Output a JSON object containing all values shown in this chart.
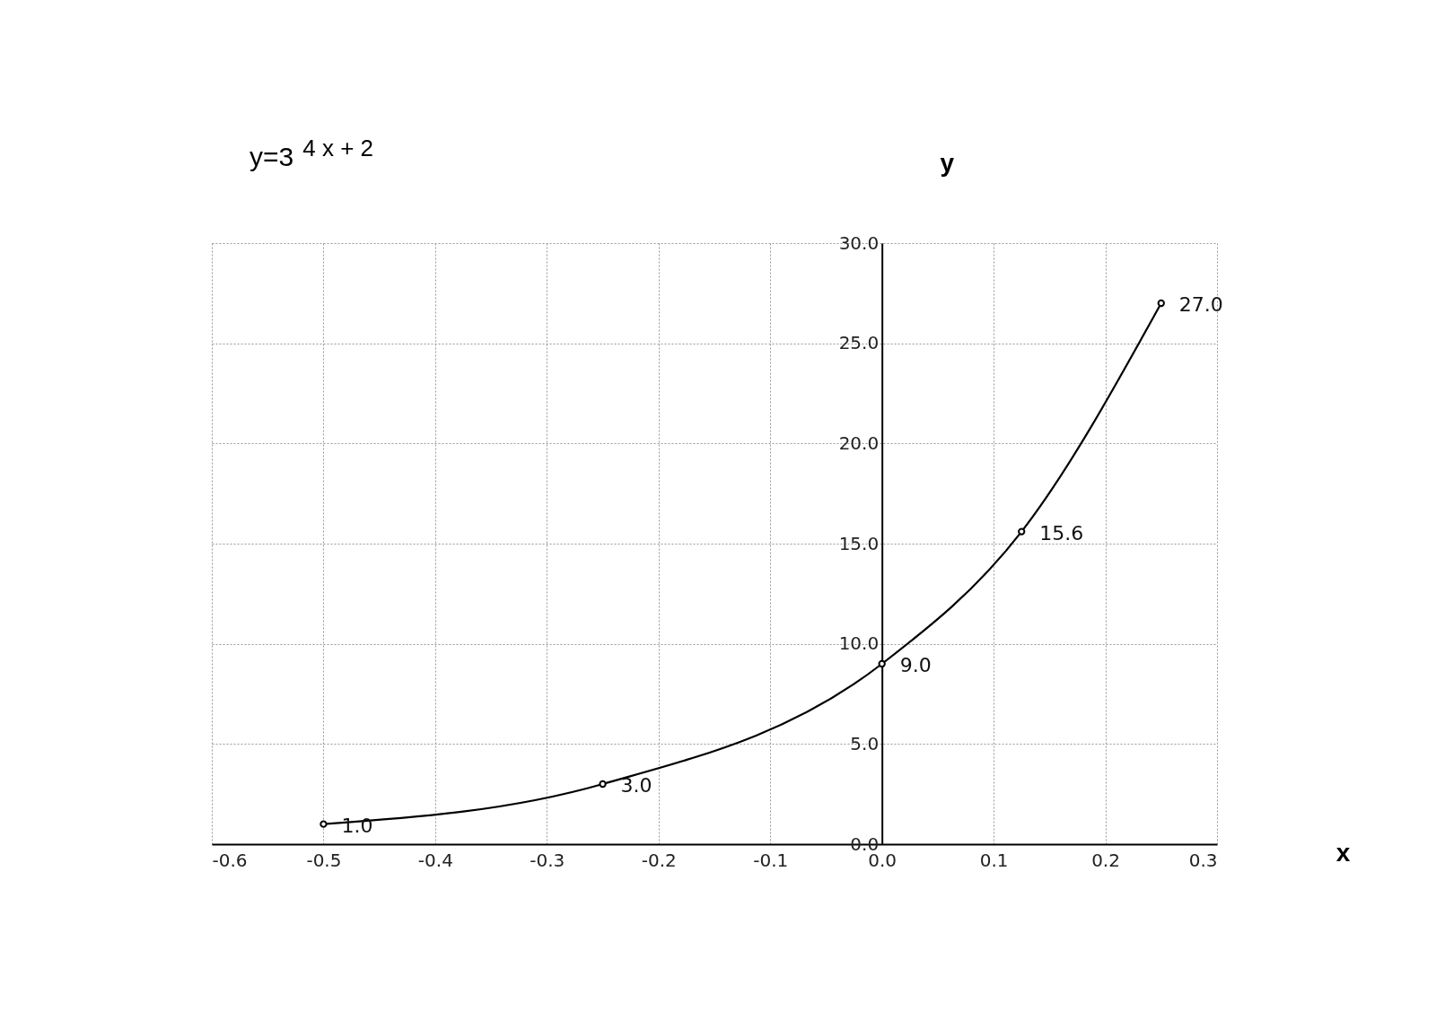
{
  "chart_data": {
    "type": "line",
    "title": "y=3$^{4 x + 2}$",
    "xlabel": "x",
    "ylabel": "y",
    "x": [
      -0.5,
      -0.25,
      0,
      0.125,
      0.25
    ],
    "series": [
      {
        "color": "#000000",
        "values": [
          1.0,
          3.0,
          9.0,
          15.6,
          27.0
        ],
        "value_labels": [
          "1.0",
          "3.0",
          "9.0",
          "15.6",
          "27.0"
        ]
      }
    ],
    "xlim": [
      -0.6,
      0.3
    ],
    "xticks": [
      -0.6,
      -0.5,
      -0.4,
      -0.3,
      -0.2,
      -0.1,
      {
        "value": 0,
        "label": "0.0"
      },
      0.1,
      0.2,
      0.3
    ],
    "ylim": [
      0,
      30
    ],
    "yticks": [
      {
        "value": 0,
        "label": "0.0"
      },
      {
        "value": 5,
        "label": "5.0"
      },
      {
        "value": 10,
        "label": "10.0"
      },
      {
        "value": 15,
        "label": "15.0"
      },
      {
        "value": 20,
        "label": "20.0"
      },
      {
        "value": 25,
        "label": "25.0"
      },
      {
        "value": 30,
        "label": "30.0"
      }
    ],
    "grid": true,
    "marker": "circle"
  }
}
